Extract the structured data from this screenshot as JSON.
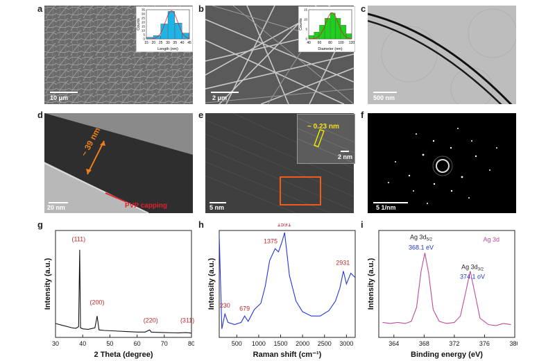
{
  "panels": {
    "a": {
      "label": "a",
      "scalebar": "10 μm",
      "inset": {
        "xlabel": "Length (nm)",
        "ylabel": "Counts",
        "xticks": [
          "15",
          "20",
          "25",
          "30",
          "35",
          "40",
          "45"
        ],
        "yticks": [
          "0",
          "5",
          "10",
          "15",
          "20",
          "25",
          "30",
          "35"
        ]
      }
    },
    "b": {
      "label": "b",
      "scalebar": "2 μm",
      "inset": {
        "xlabel": "Diameter (nm)",
        "ylabel": "Counts",
        "xticks": [
          "40",
          "60",
          "80",
          "100",
          "120"
        ],
        "yticks": [
          "0",
          "5",
          "10",
          "15"
        ]
      }
    },
    "c": {
      "label": "c",
      "scalebar": "500 nm"
    },
    "d": {
      "label": "d",
      "scalebar": "20 nm",
      "diameter": "~ 39 nm",
      "capping": "PVP capping"
    },
    "e": {
      "label": "e",
      "scalebar": "5 nm",
      "inset_scalebar": "2 nm",
      "spacing": "~ 0.23 nm"
    },
    "f": {
      "label": "f",
      "scalebar": "5 1/nm"
    },
    "g": {
      "label": "g"
    },
    "h": {
      "label": "h"
    },
    "i": {
      "label": "i"
    }
  },
  "chart_data": [
    {
      "id": "a-inset",
      "type": "bar",
      "categories": [
        17.5,
        22.5,
        27.5,
        32.5,
        37.5,
        42.5
      ],
      "values": [
        2,
        4,
        18,
        33,
        19,
        7
      ],
      "xlim": [
        15,
        45
      ],
      "ylim": [
        0,
        35
      ],
      "xlabel": "Length (nm)",
      "ylabel": "Counts",
      "color": "#1fb4e8"
    },
    {
      "id": "b-inset",
      "type": "bar",
      "categories": [
        45,
        55,
        65,
        75,
        85,
        95,
        105,
        115
      ],
      "values": [
        2,
        4,
        8,
        12,
        15,
        12,
        8,
        3
      ],
      "xlim": [
        40,
        120
      ],
      "ylim": [
        0,
        17
      ],
      "xlabel": "Diameter (nm)",
      "ylabel": "Counts",
      "color": "#19d219"
    },
    {
      "id": "g",
      "type": "line",
      "title": "",
      "xlabel": "2 Theta (degree)",
      "ylabel": "Intensity (a.u.)",
      "xlim": [
        30,
        80
      ],
      "ylim": [
        0,
        100
      ],
      "xticks": [
        30,
        40,
        50,
        60,
        70,
        80
      ],
      "color": "#111111",
      "x": [
        30,
        33,
        36,
        37.5,
        38.5,
        38.9,
        39.2,
        40,
        42,
        44.5,
        45.3,
        46,
        48,
        52,
        56,
        60,
        63,
        64.6,
        65.2,
        66,
        70,
        75,
        78,
        80
      ],
      "y": [
        13,
        11,
        9,
        8.5,
        10,
        82,
        9,
        8,
        7.5,
        9,
        20,
        7,
        6.5,
        6,
        5.5,
        5,
        5,
        7,
        5,
        4.8,
        4.5,
        4.2,
        4.5,
        4
      ],
      "annotations": [
        {
          "text": "(111)",
          "x": 38.5,
          "y": 90
        },
        {
          "text": "(200)",
          "x": 45.3,
          "y": 31
        },
        {
          "text": "(220)",
          "x": 65,
          "y": 14
        },
        {
          "text": "(311)",
          "x": 78.5,
          "y": 14
        }
      ]
    },
    {
      "id": "h",
      "type": "line",
      "title": "",
      "xlabel": "Raman shift (cm⁻¹)",
      "ylabel": "Intensity (a.u.)",
      "xlim": [
        100,
        3200
      ],
      "ylim": [
        0,
        100
      ],
      "xticks": [
        500,
        1000,
        1500,
        2000,
        2500,
        3000
      ],
      "color": "#1f35e0",
      "x": [
        100,
        160,
        230,
        300,
        450,
        600,
        679,
        760,
        900,
        1050,
        1150,
        1250,
        1375,
        1450,
        1520,
        1591,
        1700,
        1850,
        2000,
        2200,
        2400,
        2600,
        2750,
        2850,
        2931,
        3000,
        3100,
        3200
      ],
      "y": [
        95,
        8,
        22,
        14,
        12,
        14,
        20,
        15,
        26,
        32,
        48,
        72,
        83,
        80,
        88,
        98,
        58,
        34,
        24,
        20,
        20,
        25,
        34,
        46,
        62,
        50,
        60,
        56
      ],
      "annotations": [
        {
          "text": "230",
          "x": 230,
          "y": 28
        },
        {
          "text": "679",
          "x": 679,
          "y": 25
        },
        {
          "text": "1375",
          "x": 1270,
          "y": 88
        },
        {
          "text": "1591",
          "x": 1580,
          "y": 104
        },
        {
          "text": "2931",
          "x": 2920,
          "y": 68
        }
      ]
    },
    {
      "id": "i",
      "type": "line",
      "title": "",
      "xlabel": "Binding energy (eV)",
      "ylabel": "Intensity (a.u.)",
      "xlim": [
        362,
        380
      ],
      "ylim": [
        0,
        100
      ],
      "xticks": [
        364,
        368,
        372,
        376,
        380
      ],
      "color": "#c2489a",
      "x": [
        362.5,
        363.5,
        364.5,
        365.5,
        366.3,
        367,
        367.6,
        368.1,
        368.6,
        369.2,
        370,
        371,
        372,
        372.8,
        373.5,
        374.1,
        374.7,
        375.4,
        376.5,
        377.5,
        378.5,
        379.5
      ],
      "y": [
        14,
        13,
        14,
        13,
        15,
        28,
        62,
        79,
        60,
        26,
        15,
        13,
        14,
        20,
        42,
        62,
        42,
        18,
        12,
        11,
        13,
        12
      ],
      "legend": "Ag 3d",
      "peak_labels": [
        {
          "name": "Ag 3d5/2",
          "name_base": "Ag 3d",
          "name_sub": "5/2",
          "value": "368.1 eV"
        },
        {
          "name": "Ag 3d3/2",
          "name_base": "Ag 3d",
          "name_sub": "3/2",
          "value": "374.1 oV"
        }
      ]
    }
  ]
}
